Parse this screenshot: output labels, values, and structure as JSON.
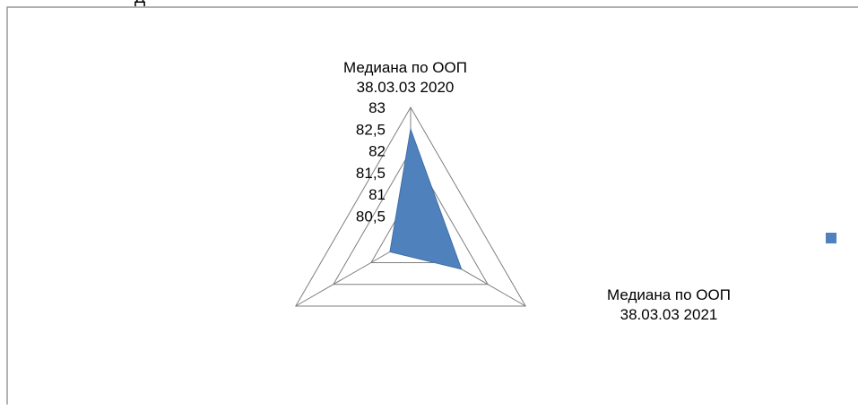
{
  "title_fragment": "Д",
  "chart_data": {
    "type": "radar",
    "axes": [
      "Медиана по ООП 38.03.03 2020",
      "Медиана по ООП 38.03.03 2021",
      ""
    ],
    "axis_label_lines": [
      [
        "Медиана по ООП",
        "38.03.03 2020"
      ],
      [
        "Медиана по ООП",
        "38.03.03 2021"
      ],
      []
    ],
    "radial_ticks": [
      "80,5",
      "81",
      "81,5",
      "82",
      "82,5",
      "83"
    ],
    "radial_range": [
      80.5,
      83
    ],
    "series": [
      {
        "name": "",
        "values": [
          82.5,
          81.3,
          80.5
        ]
      }
    ],
    "colors": {
      "series": "#4f81bd",
      "series_stroke": "#3f6fa8",
      "grid": "#7f7f7f",
      "frame": "#7f7f7f"
    },
    "legend_position": "right"
  }
}
